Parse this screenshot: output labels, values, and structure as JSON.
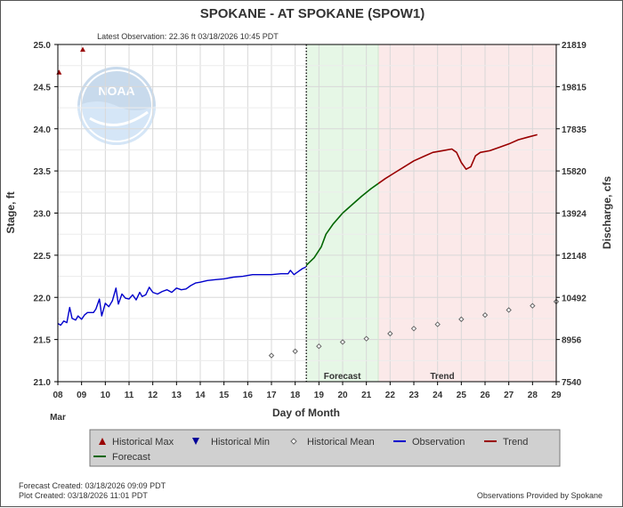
{
  "title": "SPOKANE - AT SPOKANE  (SPOW1)",
  "latest_observation": "Latest Observation: 22.36 ft 03/18/2026 10:45 PDT",
  "watermark": "NOAA",
  "chart_data": {
    "type": "line",
    "xlabel": "Day of Month",
    "ylabel": "Stage, ft",
    "y2label": "Discharge, cfs",
    "month_label": "Mar",
    "x_ticks": [
      "08",
      "09",
      "10",
      "11",
      "12",
      "13",
      "14",
      "15",
      "16",
      "17",
      "18",
      "19",
      "20",
      "21",
      "22",
      "23",
      "24",
      "25",
      "26",
      "27",
      "28",
      "29"
    ],
    "xlim": [
      8,
      29
    ],
    "ylim": [
      21.0,
      25.0
    ],
    "y_ticks": [
      "21.0",
      "21.5",
      "22.0",
      "22.5",
      "23.0",
      "23.5",
      "24.0",
      "24.5",
      "25.0"
    ],
    "y2_ticks": [
      {
        "label": "21819",
        "stage": 25.0
      },
      {
        "label": "19815",
        "stage": 24.5
      },
      {
        "label": "17835",
        "stage": 24.0
      },
      {
        "label": "15820",
        "stage": 23.5
      },
      {
        "label": "13924",
        "stage": 23.0
      },
      {
        "label": "12148",
        "stage": 22.5
      },
      {
        "label": "10492",
        "stage": 22.0
      },
      {
        "label": "8956",
        "stage": 21.5
      },
      {
        "label": "7540",
        "stage": 21.0
      }
    ],
    "grid": true,
    "forecast_start": 18.47,
    "trend_start": 21.5,
    "region_labels": {
      "forecast": "Forecast",
      "trend": "Trend"
    },
    "colors": {
      "observation": "#0000cc",
      "forecast": "#006600",
      "trend": "#990000",
      "historical_max": "#990000",
      "historical_min": "#000099",
      "mean": "#666666",
      "forecast_bg": "#e6f7e6",
      "trend_bg": "#fbe9e9"
    },
    "historical_max": [
      {
        "x": 8.05,
        "y": 24.67
      },
      {
        "x": 9.05,
        "y": 24.94
      }
    ],
    "historical_mean": [
      {
        "x": 17,
        "y": 21.31
      },
      {
        "x": 18,
        "y": 21.36
      },
      {
        "x": 19,
        "y": 21.42
      },
      {
        "x": 20,
        "y": 21.47
      },
      {
        "x": 21,
        "y": 21.51
      },
      {
        "x": 22,
        "y": 21.57
      },
      {
        "x": 23,
        "y": 21.63
      },
      {
        "x": 24,
        "y": 21.68
      },
      {
        "x": 25,
        "y": 21.74
      },
      {
        "x": 26,
        "y": 21.79
      },
      {
        "x": 27,
        "y": 21.85
      },
      {
        "x": 28,
        "y": 21.9
      },
      {
        "x": 29,
        "y": 21.95
      }
    ],
    "observation": [
      {
        "x": 8.0,
        "y": 21.69
      },
      {
        "x": 8.12,
        "y": 21.67
      },
      {
        "x": 8.25,
        "y": 21.72
      },
      {
        "x": 8.38,
        "y": 21.7
      },
      {
        "x": 8.5,
        "y": 21.88
      },
      {
        "x": 8.6,
        "y": 21.75
      },
      {
        "x": 8.75,
        "y": 21.73
      },
      {
        "x": 8.85,
        "y": 21.78
      },
      {
        "x": 9.0,
        "y": 21.74
      },
      {
        "x": 9.12,
        "y": 21.79
      },
      {
        "x": 9.25,
        "y": 21.82
      },
      {
        "x": 9.5,
        "y": 21.82
      },
      {
        "x": 9.6,
        "y": 21.86
      },
      {
        "x": 9.75,
        "y": 21.98
      },
      {
        "x": 9.85,
        "y": 21.78
      },
      {
        "x": 10.0,
        "y": 21.93
      },
      {
        "x": 10.15,
        "y": 21.89
      },
      {
        "x": 10.3,
        "y": 21.96
      },
      {
        "x": 10.45,
        "y": 22.11
      },
      {
        "x": 10.55,
        "y": 21.92
      },
      {
        "x": 10.7,
        "y": 22.04
      },
      {
        "x": 10.85,
        "y": 21.99
      },
      {
        "x": 11.0,
        "y": 21.98
      },
      {
        "x": 11.15,
        "y": 22.03
      },
      {
        "x": 11.3,
        "y": 21.97
      },
      {
        "x": 11.45,
        "y": 22.06
      },
      {
        "x": 11.55,
        "y": 22.01
      },
      {
        "x": 11.7,
        "y": 22.03
      },
      {
        "x": 11.85,
        "y": 22.12
      },
      {
        "x": 12.0,
        "y": 22.06
      },
      {
        "x": 12.2,
        "y": 22.04
      },
      {
        "x": 12.4,
        "y": 22.07
      },
      {
        "x": 12.6,
        "y": 22.09
      },
      {
        "x": 12.8,
        "y": 22.06
      },
      {
        "x": 13.0,
        "y": 22.11
      },
      {
        "x": 13.2,
        "y": 22.09
      },
      {
        "x": 13.4,
        "y": 22.1
      },
      {
        "x": 13.6,
        "y": 22.14
      },
      {
        "x": 13.8,
        "y": 22.17
      },
      {
        "x": 14.0,
        "y": 22.18
      },
      {
        "x": 14.3,
        "y": 22.2
      },
      {
        "x": 14.6,
        "y": 22.21
      },
      {
        "x": 15.0,
        "y": 22.22
      },
      {
        "x": 15.4,
        "y": 22.24
      },
      {
        "x": 15.8,
        "y": 22.25
      },
      {
        "x": 16.2,
        "y": 22.27
      },
      {
        "x": 16.6,
        "y": 22.27
      },
      {
        "x": 17.0,
        "y": 22.27
      },
      {
        "x": 17.4,
        "y": 22.28
      },
      {
        "x": 17.7,
        "y": 22.28
      },
      {
        "x": 17.8,
        "y": 22.32
      },
      {
        "x": 17.95,
        "y": 22.27
      },
      {
        "x": 18.1,
        "y": 22.3
      },
      {
        "x": 18.3,
        "y": 22.34
      },
      {
        "x": 18.45,
        "y": 22.36
      }
    ],
    "forecast": [
      {
        "x": 18.47,
        "y": 22.38
      },
      {
        "x": 18.8,
        "y": 22.47
      },
      {
        "x": 19.1,
        "y": 22.6
      },
      {
        "x": 19.3,
        "y": 22.75
      },
      {
        "x": 19.6,
        "y": 22.87
      },
      {
        "x": 20.0,
        "y": 23.0
      },
      {
        "x": 20.4,
        "y": 23.1
      },
      {
        "x": 20.8,
        "y": 23.2
      },
      {
        "x": 21.2,
        "y": 23.29
      },
      {
        "x": 21.5,
        "y": 23.35
      }
    ],
    "trend": [
      {
        "x": 21.5,
        "y": 23.35
      },
      {
        "x": 21.8,
        "y": 23.41
      },
      {
        "x": 22.2,
        "y": 23.48
      },
      {
        "x": 22.6,
        "y": 23.55
      },
      {
        "x": 23.0,
        "y": 23.62
      },
      {
        "x": 23.4,
        "y": 23.67
      },
      {
        "x": 23.8,
        "y": 23.72
      },
      {
        "x": 24.2,
        "y": 23.74
      },
      {
        "x": 24.6,
        "y": 23.76
      },
      {
        "x": 24.8,
        "y": 23.72
      },
      {
        "x": 25.0,
        "y": 23.6
      },
      {
        "x": 25.2,
        "y": 23.52
      },
      {
        "x": 25.4,
        "y": 23.55
      },
      {
        "x": 25.6,
        "y": 23.68
      },
      {
        "x": 25.8,
        "y": 23.72
      },
      {
        "x": 26.2,
        "y": 23.74
      },
      {
        "x": 26.6,
        "y": 23.78
      },
      {
        "x": 27.0,
        "y": 23.82
      },
      {
        "x": 27.4,
        "y": 23.87
      },
      {
        "x": 27.8,
        "y": 23.9
      },
      {
        "x": 28.2,
        "y": 23.93
      }
    ]
  },
  "legend": [
    {
      "label": "Historical Max",
      "symbol": "triangle-up",
      "color": "#990000"
    },
    {
      "label": "Historical Min",
      "symbol": "triangle-down",
      "color": "#000099"
    },
    {
      "label": "Historical Mean",
      "symbol": "diamond",
      "color": "#666666"
    },
    {
      "label": "Observation",
      "symbol": "line",
      "color": "#0000cc"
    },
    {
      "label": "Trend",
      "symbol": "line",
      "color": "#990000"
    },
    {
      "label": "Forecast",
      "symbol": "line",
      "color": "#006600"
    }
  ],
  "footer": {
    "forecast_created": "Forecast Created: 03/18/2026 09:09 PDT",
    "plot_created": "Plot Created: 03/18/2026 11:01 PDT",
    "provided_by": "Observations Provided by Spokane"
  }
}
